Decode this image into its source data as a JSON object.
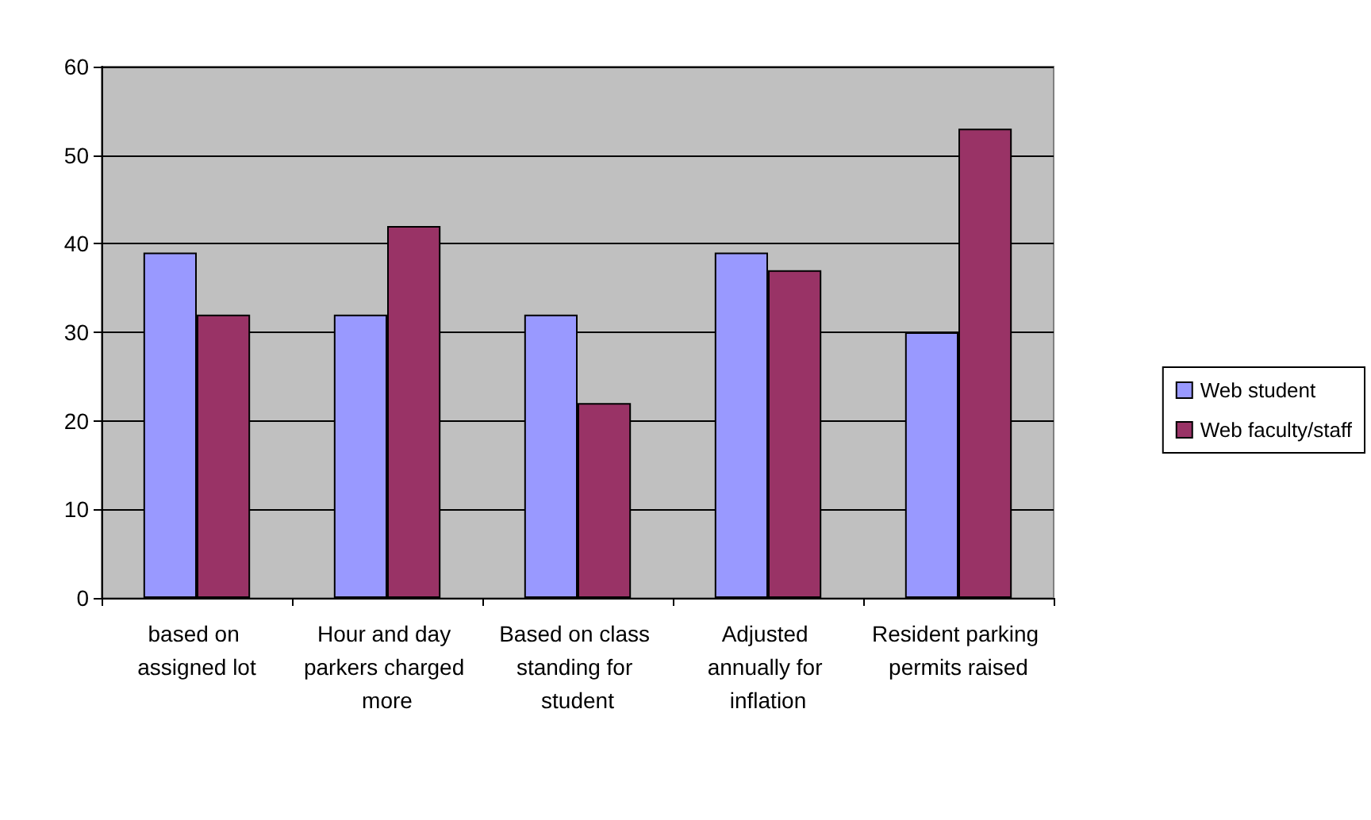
{
  "chart_data": {
    "type": "bar",
    "categories": [
      "based on assigned lot",
      "Hour and day parkers charged more",
      "Based on class standing for student",
      "Adjusted annually for inflation",
      "Resident parking permits raised"
    ],
    "series": [
      {
        "name": "Web student",
        "color": "#9999ff",
        "values": [
          39,
          32,
          32,
          39,
          30
        ]
      },
      {
        "name": "Web faculty/staff",
        "color": "#993366",
        "values": [
          32,
          42,
          22,
          37,
          53
        ]
      }
    ],
    "ylim": [
      0,
      60
    ],
    "yticks": [
      0,
      10,
      20,
      30,
      40,
      50,
      60
    ],
    "grid": "y",
    "legend": "right"
  }
}
